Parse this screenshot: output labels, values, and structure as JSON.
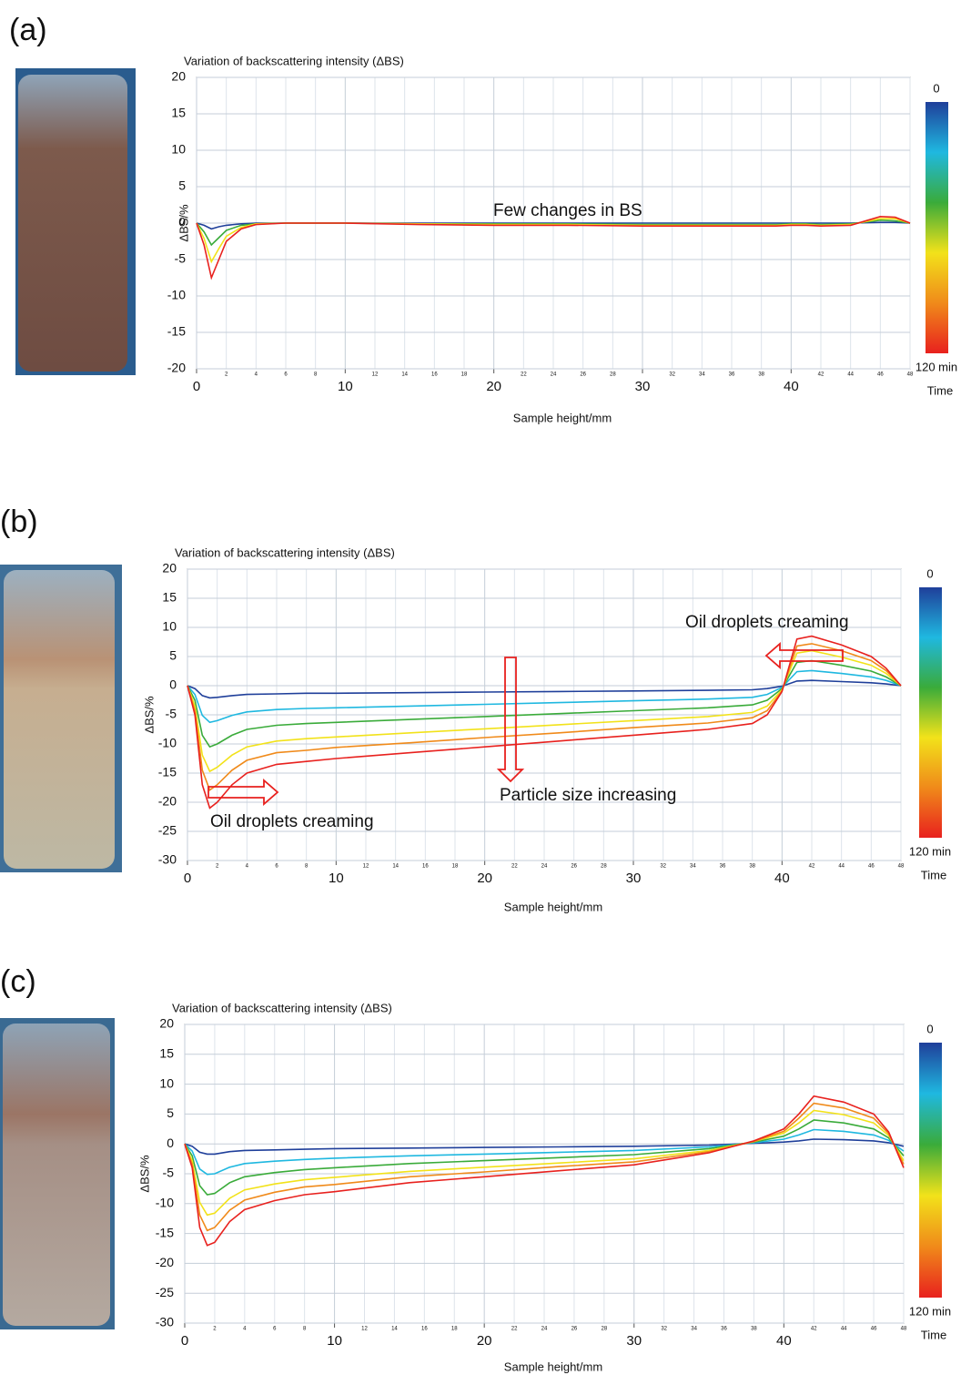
{
  "chart_data": [
    {
      "type": "line",
      "panel_label": "(a)",
      "title": "Variation of backscattering intensity (ΔBS)",
      "x_label": "Sample height/mm",
      "y_label": "ΔBS/%",
      "annotations": [
        "Few changes in BS"
      ],
      "xlim": [
        0,
        48
      ],
      "xticks": [
        0,
        10,
        20,
        30,
        40
      ],
      "xminorticks": [
        2,
        4,
        6,
        8,
        12,
        14,
        16,
        18,
        22,
        24,
        26,
        28,
        32,
        34,
        36,
        38,
        42,
        44,
        46,
        48
      ],
      "ylim": [
        -20,
        20
      ],
      "yticks": [
        -20,
        -15,
        -10,
        -5,
        0,
        5,
        10,
        15,
        20
      ],
      "grid": true,
      "colorbar": {
        "colors": [
          "#1f3f9a",
          "#1fb8e0",
          "#3aab3a",
          "#f2e21a",
          "#f08a1a",
          "#e8211e"
        ],
        "ticks": [
          0,
          {
            "value": 120,
            "label": "120 min"
          }
        ],
        "title": "Time"
      },
      "x": [
        0,
        0.5,
        1,
        1.5,
        2,
        3,
        4,
        6,
        8,
        10,
        15,
        20,
        25,
        30,
        35,
        38,
        39,
        40,
        41,
        42,
        44,
        46,
        47,
        48
      ],
      "series": [
        {
          "color": "#1f3f9a",
          "values": [
            0,
            -0.3,
            -0.8,
            -0.5,
            -0.3,
            -0.1,
            0,
            0,
            0,
            0,
            0,
            0,
            0,
            0,
            0,
            0,
            0,
            0,
            0,
            0,
            0,
            0.1,
            0.1,
            0
          ]
        },
        {
          "color": "#3aab3a",
          "values": [
            0,
            -1.2,
            -3,
            -2,
            -1,
            -0.3,
            -0.1,
            0,
            0,
            0,
            -0.1,
            -0.1,
            -0.1,
            -0.2,
            -0.2,
            -0.2,
            -0.2,
            -0.1,
            -0.1,
            -0.2,
            -0.1,
            0.4,
            0.3,
            0
          ]
        },
        {
          "color": "#f2e21a",
          "values": [
            0,
            -2.1,
            -5.3,
            -3.5,
            -1.8,
            -0.6,
            -0.1,
            0,
            0,
            0,
            -0.1,
            -0.2,
            -0.2,
            -0.3,
            -0.3,
            -0.3,
            -0.3,
            -0.2,
            -0.2,
            -0.3,
            -0.2,
            0.6,
            0.6,
            0
          ]
        },
        {
          "color": "#e8211e",
          "values": [
            0,
            -3,
            -7.5,
            -5,
            -2.5,
            -0.8,
            -0.2,
            0,
            0,
            0,
            -0.2,
            -0.3,
            -0.3,
            -0.4,
            -0.4,
            -0.4,
            -0.4,
            -0.3,
            -0.3,
            -0.4,
            -0.3,
            0.9,
            0.8,
            0
          ]
        }
      ]
    },
    {
      "type": "line",
      "panel_label": "(b)",
      "title": "Variation of backscattering intensity (ΔBS)",
      "x_label": "Sample height/mm",
      "y_label": "ΔBS/%",
      "annotations": [
        "Oil droplets creaming",
        "Particle size increasing",
        "Oil droplets creaming"
      ],
      "xlim": [
        0,
        48
      ],
      "xticks": [
        0,
        10,
        20,
        30,
        40
      ],
      "xminorticks": [
        2,
        4,
        6,
        8,
        12,
        14,
        16,
        18,
        22,
        24,
        26,
        28,
        32,
        34,
        36,
        38,
        42,
        44,
        46,
        48
      ],
      "ylim": [
        -30,
        20
      ],
      "yticks": [
        -30,
        -25,
        -20,
        -15,
        -10,
        -5,
        0,
        5,
        10,
        15,
        20
      ],
      "grid": true,
      "colorbar": {
        "colors": [
          "#1f3f9a",
          "#1fb8e0",
          "#3aab3a",
          "#f2e21a",
          "#f08a1a",
          "#e8211e"
        ],
        "ticks": [
          0,
          {
            "value": 120,
            "label": "120 min"
          }
        ],
        "title": "Time"
      },
      "x": [
        0,
        0.5,
        1,
        1.5,
        2,
        3,
        4,
        6,
        8,
        10,
        15,
        20,
        25,
        30,
        35,
        38,
        39,
        40,
        41,
        42,
        44,
        46,
        47,
        48
      ],
      "series": [
        {
          "color": "#1f3f9a",
          "values": [
            0,
            -0.5,
            -1.7,
            -2.1,
            -2,
            -1.7,
            -1.5,
            -1.4,
            -1.3,
            -1.3,
            -1.2,
            -1.1,
            -1,
            -0.9,
            -0.8,
            -0.7,
            -0.5,
            -0.1,
            0.8,
            0.9,
            0.7,
            0.5,
            0.3,
            0
          ]
        },
        {
          "color": "#1fb8e0",
          "values": [
            0,
            -1.5,
            -5.1,
            -6.3,
            -6,
            -5.1,
            -4.5,
            -4.1,
            -3.9,
            -3.8,
            -3.5,
            -3.2,
            -2.9,
            -2.6,
            -2.3,
            -2,
            -1.5,
            -0.3,
            2.4,
            2.6,
            2.1,
            1.5,
            0.9,
            0
          ]
        },
        {
          "color": "#3aab3a",
          "values": [
            0,
            -2.5,
            -8.5,
            -10.5,
            -10,
            -8.5,
            -7.5,
            -6.8,
            -6.5,
            -6.3,
            -5.8,
            -5.3,
            -4.8,
            -4.3,
            -3.8,
            -3.3,
            -2.5,
            -0.5,
            4,
            4.3,
            3.5,
            2.5,
            1.5,
            0
          ]
        },
        {
          "color": "#f2e21a",
          "values": [
            0,
            -3.5,
            -11.9,
            -14.7,
            -14,
            -11.9,
            -10.5,
            -9.5,
            -9.1,
            -8.8,
            -8.1,
            -7.4,
            -6.7,
            -6,
            -5.3,
            -4.6,
            -3.5,
            -0.7,
            5.6,
            6,
            4.9,
            3.5,
            2.1,
            0
          ]
        },
        {
          "color": "#f08a1a",
          "values": [
            0,
            -4.3,
            -14.5,
            -17.9,
            -17,
            -14.5,
            -12.8,
            -11.5,
            -11.1,
            -10.6,
            -9.8,
            -8.9,
            -8.1,
            -7.2,
            -6.4,
            -5.5,
            -4.3,
            -0.9,
            6.8,
            7.2,
            6,
            4.3,
            2.6,
            0
          ]
        },
        {
          "color": "#e8211e",
          "values": [
            0,
            -5,
            -17,
            -21,
            -20,
            -17,
            -15,
            -13.5,
            -13,
            -12.5,
            -11.5,
            -10.5,
            -9.5,
            -8.5,
            -7.5,
            -6.5,
            -5,
            -1,
            8,
            8.5,
            7,
            5,
            3,
            0
          ]
        }
      ]
    },
    {
      "type": "line",
      "panel_label": "(c)",
      "title": "Variation of backscattering intensity (ΔBS)",
      "x_label": "Sample height/mm",
      "y_label": "ΔBS/%",
      "annotations": [],
      "xlim": [
        0,
        48
      ],
      "xticks": [
        0,
        10,
        20,
        30,
        40
      ],
      "xminorticks": [
        2,
        4,
        6,
        8,
        12,
        14,
        16,
        18,
        22,
        24,
        26,
        28,
        32,
        34,
        36,
        38,
        42,
        44,
        46,
        48
      ],
      "ylim": [
        -30,
        20
      ],
      "yticks": [
        -30,
        -25,
        -20,
        -15,
        -10,
        -5,
        0,
        5,
        10,
        15,
        20
      ],
      "grid": true,
      "colorbar": {
        "colors": [
          "#1f3f9a",
          "#1fb8e0",
          "#3aab3a",
          "#f2e21a",
          "#f08a1a",
          "#e8211e"
        ],
        "ticks": [
          0,
          {
            "value": 120,
            "label": "120 min"
          }
        ],
        "title": "Time"
      },
      "x": [
        0,
        0.5,
        1,
        1.5,
        2,
        3,
        4,
        6,
        8,
        10,
        15,
        20,
        25,
        30,
        35,
        38,
        39,
        40,
        41,
        42,
        44,
        46,
        47,
        48
      ],
      "series": [
        {
          "color": "#1f3f9a",
          "values": [
            0,
            -0.4,
            -1.4,
            -1.7,
            -1.7,
            -1.3,
            -1.1,
            -1,
            -0.9,
            -0.8,
            -0.7,
            -0.6,
            -0.5,
            -0.4,
            -0.2,
            0.1,
            0.2,
            0.3,
            0.5,
            0.8,
            0.7,
            0.5,
            0.2,
            -0.4
          ]
        },
        {
          "color": "#1fb8e0",
          "values": [
            0,
            -1.2,
            -4.2,
            -5.1,
            -5,
            -3.9,
            -3.3,
            -2.9,
            -2.6,
            -2.4,
            -2,
            -1.7,
            -1.4,
            -1.1,
            -0.5,
            0.2,
            0.5,
            0.8,
            1.5,
            2.4,
            2.1,
            1.5,
            0.6,
            -1.2
          ]
        },
        {
          "color": "#3aab3a",
          "values": [
            0,
            -2,
            -7,
            -8.5,
            -8.3,
            -6.5,
            -5.5,
            -4.8,
            -4.3,
            -4,
            -3.3,
            -2.8,
            -2.3,
            -1.8,
            -0.8,
            0.3,
            0.8,
            1.3,
            2.5,
            4,
            3.5,
            2.5,
            1,
            -2
          ]
        },
        {
          "color": "#f2e21a",
          "values": [
            0,
            -2.8,
            -9.8,
            -11.9,
            -11.6,
            -9.1,
            -7.7,
            -6.7,
            -6,
            -5.6,
            -4.6,
            -3.9,
            -3.2,
            -2.5,
            -1.1,
            0.4,
            1.1,
            1.8,
            3.5,
            5.6,
            4.9,
            3.5,
            1.4,
            -2.8
          ]
        },
        {
          "color": "#f08a1a",
          "values": [
            0,
            -3.4,
            -11.9,
            -14.5,
            -14,
            -11.1,
            -9.4,
            -8.1,
            -7.2,
            -6.8,
            -5.5,
            -4.7,
            -3.8,
            -3,
            -1.3,
            0.4,
            1.3,
            2.1,
            4.3,
            6.8,
            6,
            4.3,
            1.7,
            -3.4
          ]
        },
        {
          "color": "#e8211e",
          "values": [
            0,
            -4,
            -14,
            -17,
            -16.5,
            -13,
            -11,
            -9.5,
            -8.5,
            -8,
            -6.5,
            -5.5,
            -4.5,
            -3.5,
            -1.5,
            0.5,
            1.5,
            2.5,
            5,
            8,
            7,
            5,
            2,
            -4
          ]
        }
      ]
    }
  ]
}
